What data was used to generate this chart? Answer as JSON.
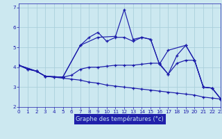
{
  "xlabel": "Graphe des températures (°c)",
  "bg_color": "#cce8f0",
  "grid_color": "#aacfdb",
  "line_color": "#1a1aaa",
  "xlim": [
    0,
    23
  ],
  "ylim": [
    2,
    7.2
  ],
  "yticks": [
    2,
    3,
    4,
    5,
    6,
    7
  ],
  "xticks": [
    0,
    1,
    2,
    3,
    4,
    5,
    6,
    7,
    8,
    9,
    10,
    11,
    12,
    13,
    14,
    15,
    16,
    17,
    18,
    19,
    20,
    21,
    22,
    23
  ],
  "xlabel_bg": "#2020aa",
  "xlabel_fg": "#cce8f0",
  "series": [
    {
      "x": [
        0,
        1,
        2,
        3,
        4,
        5,
        6,
        7,
        8,
        9,
        10,
        11,
        12,
        13,
        14,
        15,
        16,
        17,
        18,
        19,
        20,
        21,
        22,
        23
      ],
      "y": [
        4.1,
        3.9,
        3.8,
        3.55,
        3.5,
        3.45,
        3.4,
        3.35,
        3.25,
        3.2,
        3.1,
        3.05,
        3.0,
        2.95,
        2.9,
        2.85,
        2.8,
        2.75,
        2.7,
        2.65,
        2.6,
        2.5,
        2.45,
        2.4
      ]
    },
    {
      "x": [
        0,
        1,
        2,
        3,
        4,
        5,
        6,
        7,
        8,
        9,
        10,
        11,
        12,
        13,
        14,
        15,
        16,
        17,
        18,
        19,
        20,
        21,
        22,
        23
      ],
      "y": [
        4.1,
        3.9,
        3.8,
        3.55,
        3.5,
        3.5,
        3.6,
        3.9,
        4.0,
        4.0,
        4.05,
        4.1,
        4.1,
        4.1,
        4.15,
        4.2,
        4.2,
        3.65,
        4.2,
        4.35,
        4.35,
        3.0,
        2.95,
        2.4
      ]
    },
    {
      "x": [
        0,
        2,
        3,
        5,
        7,
        9,
        11,
        12,
        13,
        14,
        15,
        16,
        17,
        19,
        20,
        21,
        22,
        23
      ],
      "y": [
        4.1,
        3.8,
        3.55,
        3.5,
        5.1,
        5.5,
        5.55,
        6.9,
        5.4,
        5.5,
        5.4,
        4.15,
        4.85,
        5.1,
        4.35,
        3.0,
        2.95,
        2.4
      ]
    },
    {
      "x": [
        0,
        2,
        3,
        5,
        7,
        8,
        9,
        10,
        11,
        12,
        13,
        14,
        15,
        16,
        17,
        18,
        19,
        20,
        21,
        22,
        23
      ],
      "y": [
        4.1,
        3.8,
        3.55,
        3.5,
        5.1,
        5.5,
        5.75,
        5.3,
        5.5,
        5.5,
        5.3,
        5.5,
        5.4,
        4.15,
        3.65,
        4.6,
        5.1,
        4.35,
        3.0,
        2.95,
        2.4
      ]
    }
  ]
}
